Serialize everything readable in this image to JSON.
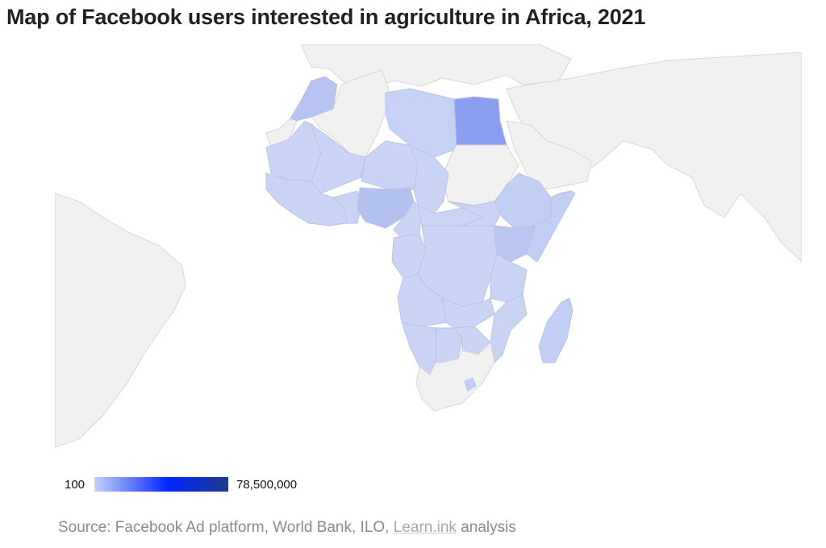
{
  "title": "Map of Facebook users interested in agriculture in Africa, 2021",
  "legend": {
    "min_label": "100",
    "max_label": "78,500,000",
    "colors": [
      "#c6d2f6",
      "#0026ff",
      "#1d3b8a"
    ]
  },
  "source": {
    "prefix": "Source: Facebook Ad platform, World Bank, ILO, ",
    "link_text": "Learn.ink",
    "suffix": " analysis"
  },
  "colors": {
    "no_data": "#f1f1f1",
    "low": "#c9d4f5",
    "mid": "#b7c4f2",
    "high": "#8c9ef0"
  }
}
